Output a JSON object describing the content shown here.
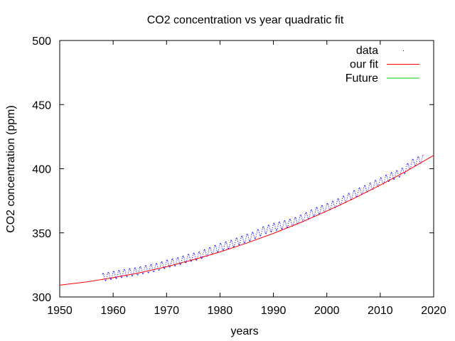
{
  "chart_data": {
    "type": "line",
    "title": "CO2 concentration vs year quadratic fit",
    "xlabel": "years",
    "ylabel": "CO2 concentration (ppm)",
    "xlim": [
      1950,
      2020
    ],
    "ylim": [
      300,
      500
    ],
    "x_ticks": [
      "1950",
      "1960",
      "1970",
      "1980",
      "1990",
      "2000",
      "2010",
      "2020"
    ],
    "y_ticks": [
      "300",
      "350",
      "400",
      "450",
      "500"
    ],
    "grid": false,
    "legend_position": "top-right",
    "series": [
      {
        "name": "data",
        "style": "points",
        "color": "#0000ff",
        "x": [
          1958,
          1960,
          1962,
          1964,
          1966,
          1968,
          1970,
          1972,
          1974,
          1976,
          1978,
          1980,
          1982,
          1984,
          1986,
          1988,
          1990,
          1992,
          1994,
          1996,
          1998,
          2000,
          2002,
          2004,
          2006,
          2008,
          2010,
          2012,
          2014,
          2016,
          2018
        ],
        "y": [
          315.3,
          316.9,
          318.4,
          319.6,
          321.4,
          323.0,
          325.7,
          327.5,
          330.2,
          332.0,
          335.4,
          338.7,
          341.1,
          344.4,
          347.2,
          351.6,
          354.4,
          356.4,
          358.8,
          362.6,
          366.7,
          369.7,
          373.4,
          377.7,
          381.9,
          385.6,
          389.9,
          393.8,
          397.1,
          404.2,
          408.0
        ],
        "seasonal_amplitude_ppm": 3.0
      },
      {
        "name": "our fit",
        "style": "line",
        "color": "#ff0000",
        "x": [
          1950,
          1955,
          1960,
          1965,
          1970,
          1975,
          1980,
          1985,
          1990,
          1995,
          2000,
          2005,
          2010,
          2015,
          2020
        ],
        "y": [
          309.2,
          311.7,
          315.0,
          318.9,
          323.6,
          329.0,
          335.1,
          342.0,
          349.6,
          357.9,
          367.0,
          376.7,
          387.2,
          398.4,
          410.4
        ]
      },
      {
        "name": "Future",
        "style": "line",
        "color": "#00cc00",
        "x": [
          2020
        ],
        "y": [
          410.4
        ]
      }
    ]
  }
}
